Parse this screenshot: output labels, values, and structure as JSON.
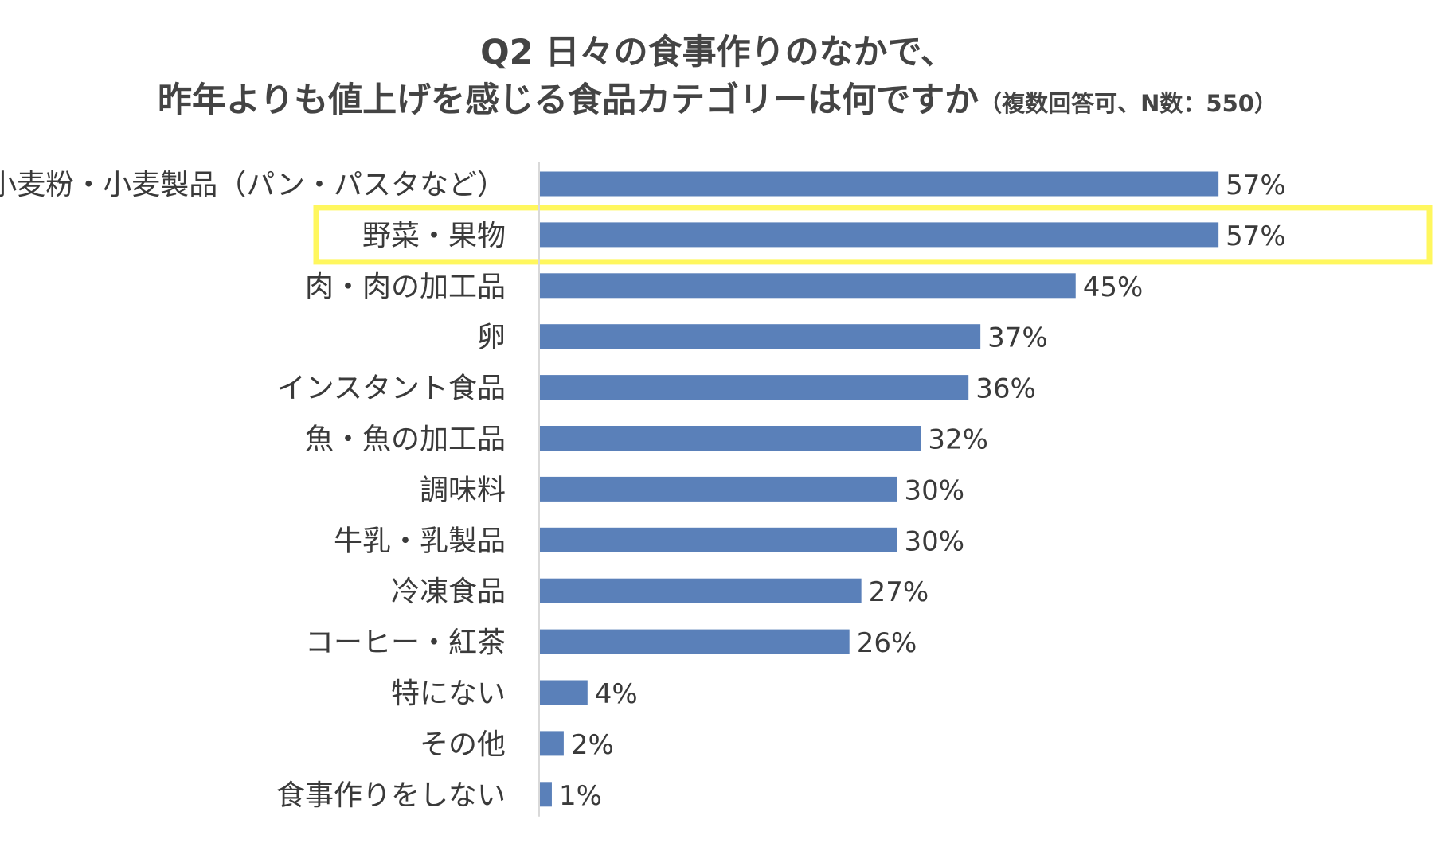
{
  "chart_data": {
    "type": "bar",
    "orientation": "horizontal",
    "title_line1": "Q2 日々の食事作りのなかで、",
    "title_line2": "昨年よりも値上げを感じる食品カテゴリーは何ですか",
    "title_note": "（複数回答可、N数：550）",
    "categories": [
      "小麦粉・小麦製品（パン・パスタなど）",
      "野菜・果物",
      "肉・肉の加工品",
      "卵",
      "インスタント食品",
      "魚・魚の加工品",
      "調味料",
      "牛乳・乳製品",
      "冷凍食品",
      "コーヒー・紅茶",
      "特にない",
      "その他",
      "食事作りをしない"
    ],
    "values": [
      57,
      57,
      45,
      37,
      36,
      32,
      30,
      30,
      27,
      26,
      4,
      2,
      1
    ],
    "value_labels": [
      "57%",
      "57%",
      "45%",
      "37%",
      "36%",
      "32%",
      "30%",
      "30%",
      "27%",
      "26%",
      "4%",
      "2%",
      "1%"
    ],
    "unit": "%",
    "highlighted_category": "野菜・果物",
    "colors": {
      "bar": "#5a80b9",
      "highlight_box": "#fff75e",
      "axis": "#d9d9d9"
    },
    "grid": false,
    "legend": "none"
  }
}
